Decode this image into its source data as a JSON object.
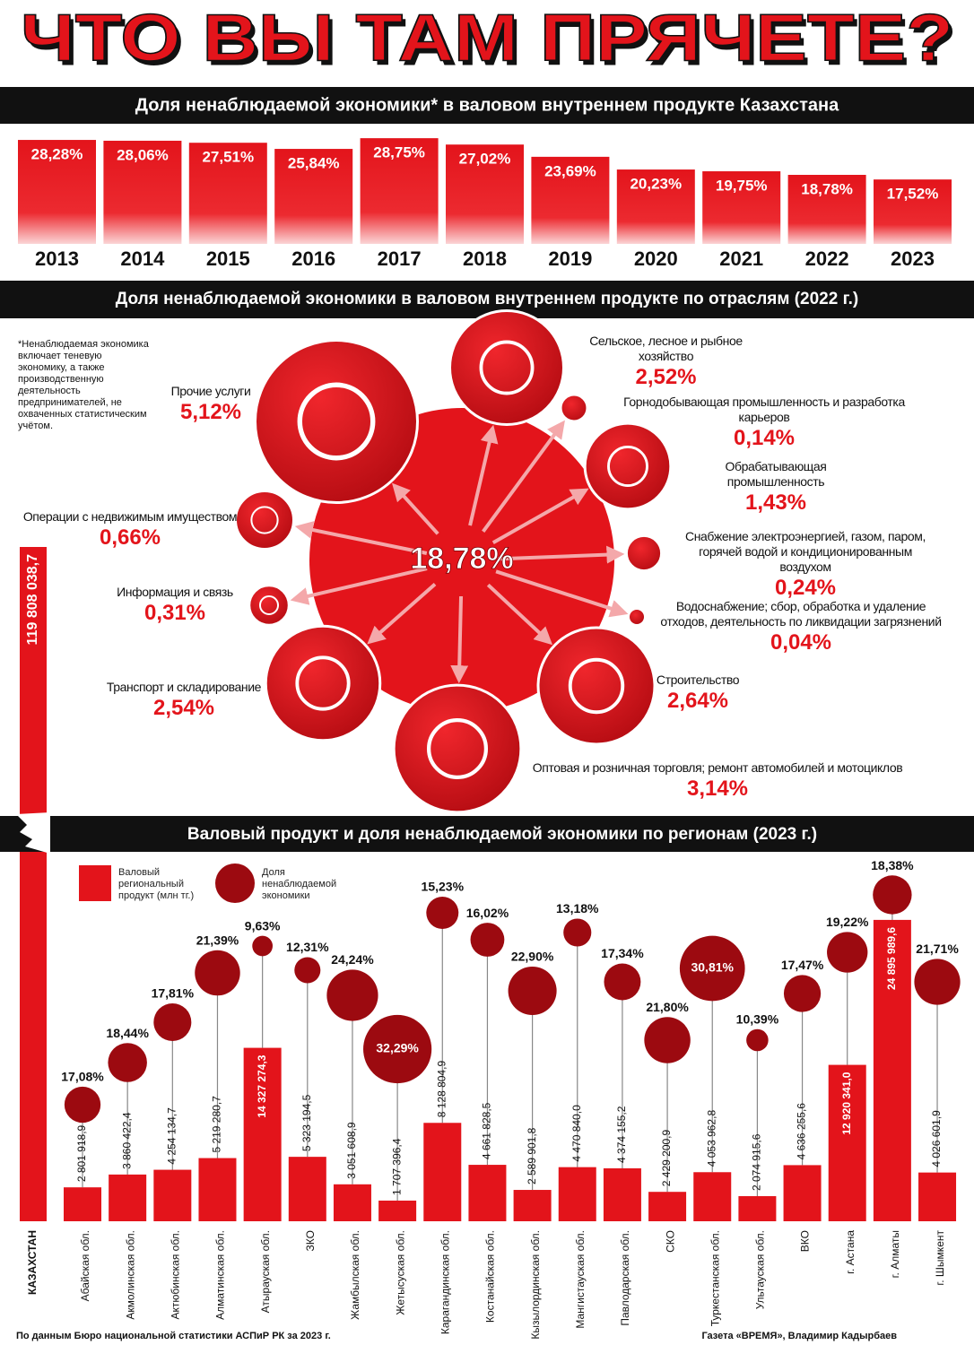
{
  "title": "ЧТО ВЫ ТАМ ПРЯЧЕТЕ?",
  "footnote": "*Ненаблюдаемая экономика включает теневую экономику, а также производственную деятельность предпринимателей, не охваченных статистическим учётом.",
  "source": "По данным Бюро национальной статистики АСПиР РК за 2023 г.",
  "credit": "Газета «ВРЕМЯ», Владимир Кадырбаев",
  "chart_data": [
    {
      "type": "bar",
      "title": "Доля ненаблюдаемой экономики* в валовом внутреннем продукте Казахстана",
      "categories": [
        "2013",
        "2014",
        "2015",
        "2016",
        "2017",
        "2018",
        "2019",
        "2020",
        "2021",
        "2022",
        "2023"
      ],
      "values": [
        28.28,
        28.06,
        27.51,
        25.84,
        28.75,
        27.02,
        23.69,
        20.23,
        19.75,
        18.78,
        17.52
      ],
      "value_labels": [
        "28,28%",
        "28,06%",
        "27,51%",
        "25,84%",
        "28,75%",
        "27,02%",
        "23,69%",
        "20,23%",
        "19,75%",
        "18,78%",
        "17,52%"
      ],
      "color": "#e3141b"
    },
    {
      "type": "bubble",
      "title": "Доля ненаблюдаемой экономики в валовом внутреннем продукте по отраслям (2022 г.)",
      "total": 18.78,
      "total_label": "18,78%",
      "categories": [
        "Прочие услуги",
        "Сельское, лесное и рыбное хозяйство",
        "Горнодобывающая промышленность и разработка карьеров",
        "Обрабатывающая промышленность",
        "Снабжение электроэнергией, газом, паром, горячей водой и кондиционированным воздухом",
        "Водоснабжение; сбор, обработка и удаление отходов, деятельность по ликвидации загрязнений",
        "Строительство",
        "Оптовая и розничная торговля; ремонт автомобилей и мотоциклов",
        "Транспорт и складирование",
        "Информация и связь",
        "Операции с недвижимым имуществом"
      ],
      "values": [
        5.12,
        2.52,
        0.14,
        1.43,
        0.24,
        0.04,
        2.64,
        3.14,
        2.54,
        0.31,
        0.66
      ],
      "value_labels": [
        "5,12%",
        "2,52%",
        "0,14%",
        "1,43%",
        "0,24%",
        "0,04%",
        "2,64%",
        "3,14%",
        "2,54%",
        "0,31%",
        "0,66%"
      ],
      "color": "#e3141b"
    },
    {
      "type": "bar_bubble",
      "title": "Валовый продукт и доля ненаблюдаемой экономики по регионам (2023 г.)",
      "categories": [
        "КАЗАХСТАН",
        "Абайская обл.",
        "Акмолинская обл.",
        "Актюбинская обл.",
        "Алматинская обл.",
        "Атырауская обл.",
        "ЗКО",
        "Жамбылская обл.",
        "Жетысуская обл.",
        "Карагандинская обл.",
        "Костанайская обл.",
        "Кызылординская обл.",
        "Мангистауская обл.",
        "Павлодарская обл.",
        "СКО",
        "Туркестанская обл.",
        "Ультауская обл.",
        "ВКО",
        "г. Астана",
        "г. Алматы",
        "г. Шымкент"
      ],
      "series": [
        {
          "name": "Валовый региональный продукт (млн тг.)",
          "color": "#e3141b",
          "values": [
            119808038.7,
            2801918.9,
            3860422.4,
            4254134.7,
            5219280.7,
            14327274.3,
            5323194.5,
            3051608.9,
            1707396.4,
            8128804.9,
            4661828.5,
            2589901.8,
            4470840.0,
            4374155.2,
            2429200.9,
            4053962.8,
            2074915.6,
            4636255.6,
            12920341.0,
            24895989.6,
            4026601.9
          ],
          "value_labels": [
            "119 808 038,7",
            "2 801 918,9",
            "3 860 422,4",
            "4 254 134,7",
            "5 219 280,7",
            "14 327 274,3",
            "5 323 194,5",
            "3 051 608,9",
            "1 707 396,4",
            "8 128 804,9",
            "4 661 828,5",
            "2 589 901,8",
            "4 470 840,0",
            "4 374 155,2",
            "2 429 200,9",
            "4 053 962,8",
            "2 074 915,6",
            "4 636 255,6",
            "12 920 341,0",
            "24 895 989,6",
            "4 026 601,9"
          ]
        },
        {
          "name": "Доля ненаблюдаемой экономики",
          "color": "#9c0a10",
          "values": [
            null,
            17.08,
            18.44,
            17.81,
            21.39,
            9.63,
            12.31,
            24.24,
            32.29,
            15.23,
            16.02,
            22.9,
            13.18,
            17.34,
            21.8,
            30.81,
            10.39,
            17.47,
            19.22,
            18.38,
            21.71
          ],
          "value_labels": [
            null,
            "17,08%",
            "18,44%",
            "17,81%",
            "21,39%",
            "9,63%",
            "12,31%",
            "24,24%",
            "32,29%",
            "15,23%",
            "16,02%",
            "22,90%",
            "13,18%",
            "17,34%",
            "21,80%",
            "30,81%",
            "10,39%",
            "17,47%",
            "19,22%",
            "18,38%",
            "21,71%"
          ]
        }
      ]
    }
  ]
}
